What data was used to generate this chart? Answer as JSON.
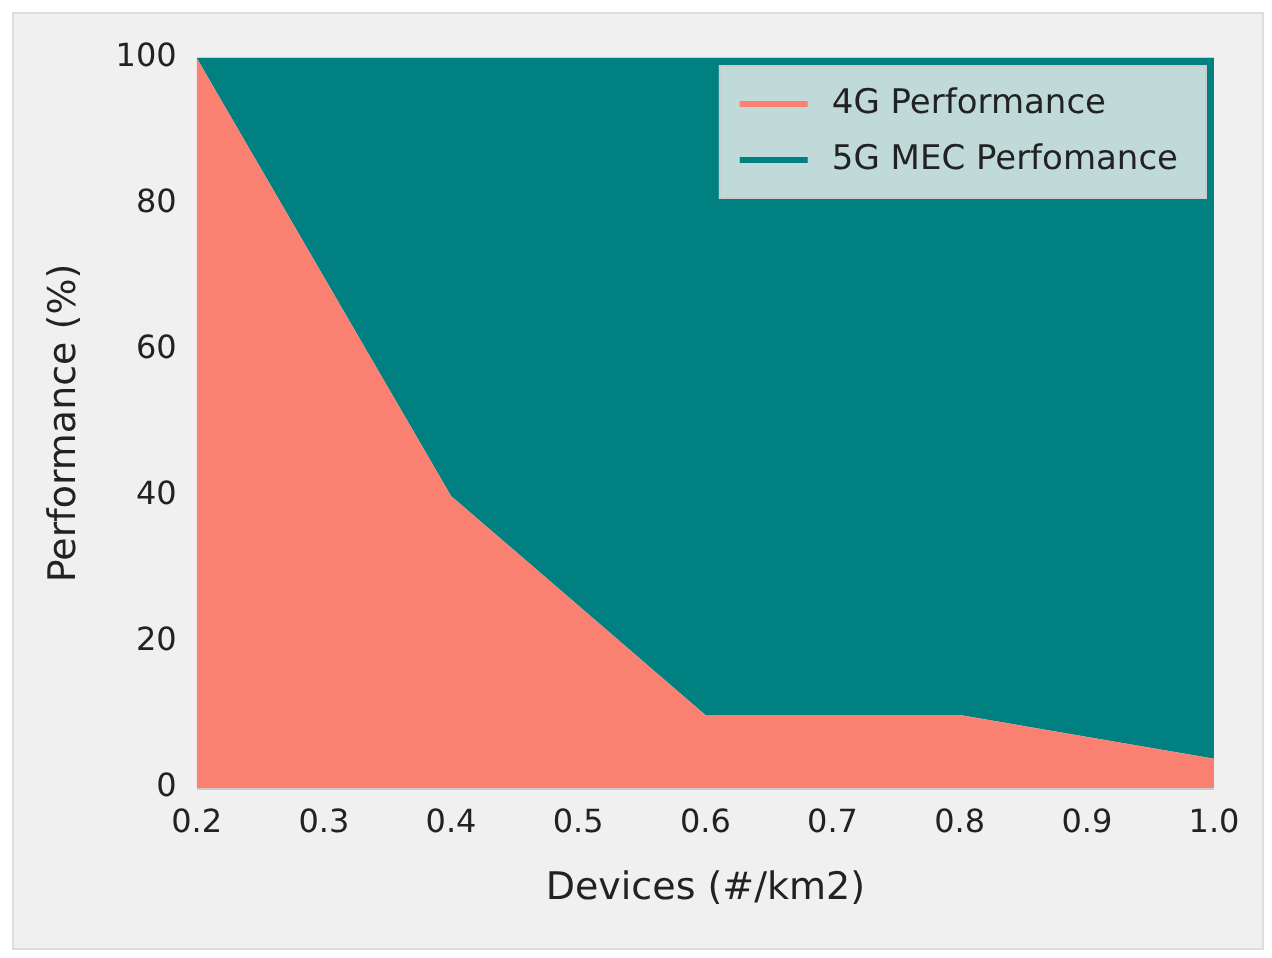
{
  "chart_data": {
    "type": "area",
    "xlabel": "Devices (#/km2)",
    "ylabel": "Performance (%)",
    "stacked": true,
    "x": [
      0.2,
      0.4,
      0.6,
      0.8,
      1.0
    ],
    "series": [
      {
        "name": "4G Performance",
        "color": "#fa8072",
        "values": [
          100,
          40,
          10,
          10,
          4
        ]
      },
      {
        "name": "5G MEC Perfomance",
        "color": "#008080",
        "values": [
          0,
          60,
          90,
          90,
          96
        ]
      }
    ],
    "xlim": [
      0.2,
      1.0
    ],
    "xticks": [
      0.2,
      0.3,
      0.4,
      0.5,
      0.6,
      0.7,
      0.8,
      0.9,
      {
        "value": 1.0,
        "label": "1.0"
      }
    ],
    "ylim": [
      0,
      100
    ],
    "yticks": [
      0,
      20,
      40,
      60,
      80,
      100
    ],
    "grid": "y",
    "legend": "top right"
  }
}
